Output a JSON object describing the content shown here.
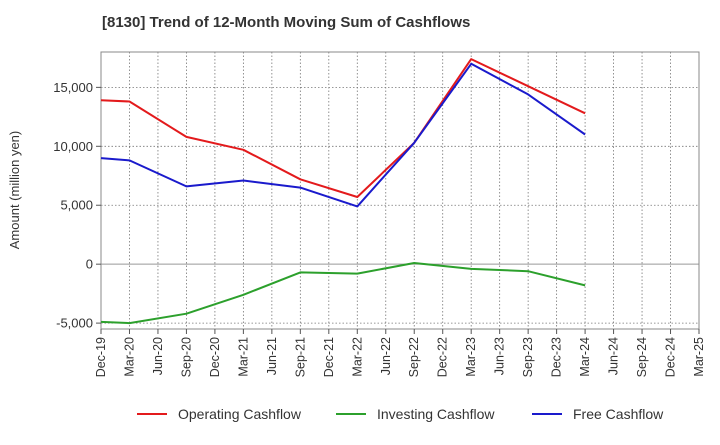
{
  "chart_data": {
    "type": "line",
    "title": "[8130]  Trend of 12-Month Moving Sum of Cashflows",
    "xlabel": "",
    "ylabel": "Amount (million yen)",
    "categories": [
      "Dec-19",
      "Mar-20",
      "Jun-20",
      "Sep-20",
      "Dec-20",
      "Mar-21",
      "Jun-21",
      "Sep-21",
      "Dec-21",
      "Mar-22",
      "Jun-22",
      "Sep-22",
      "Dec-22",
      "Mar-23",
      "Jun-23",
      "Sep-23",
      "Dec-23",
      "Mar-24",
      "Jun-24",
      "Sep-24",
      "Dec-24",
      "Mar-25"
    ],
    "ylim": [
      -5500,
      18000
    ],
    "yticks": [
      -5000,
      0,
      5000,
      10000,
      15000
    ],
    "ytick_labels": [
      "-5,000",
      "0",
      "5,000",
      "10,000",
      "15,000"
    ],
    "grid": true,
    "legend_position": "bottom",
    "series": [
      {
        "name": "Operating Cashflow",
        "color": "#e31a1c",
        "values": [
          13900,
          13800,
          null,
          10800,
          null,
          9700,
          null,
          7200,
          null,
          5700,
          null,
          10300,
          null,
          17400,
          null,
          15100,
          null,
          12800,
          null,
          null,
          null,
          null
        ]
      },
      {
        "name": "Investing Cashflow",
        "color": "#2ca02c",
        "values": [
          -4900,
          -5000,
          null,
          -4200,
          null,
          -2600,
          null,
          -700,
          null,
          -800,
          null,
          100,
          null,
          -400,
          null,
          -600,
          null,
          -1800,
          null,
          null,
          null,
          null
        ]
      },
      {
        "name": "Free Cashflow",
        "color": "#1a1acc",
        "values": [
          9000,
          8800,
          null,
          6600,
          null,
          7100,
          null,
          6500,
          null,
          4900,
          null,
          10300,
          null,
          17000,
          null,
          14400,
          null,
          11000,
          null,
          null,
          null,
          null
        ]
      }
    ]
  }
}
